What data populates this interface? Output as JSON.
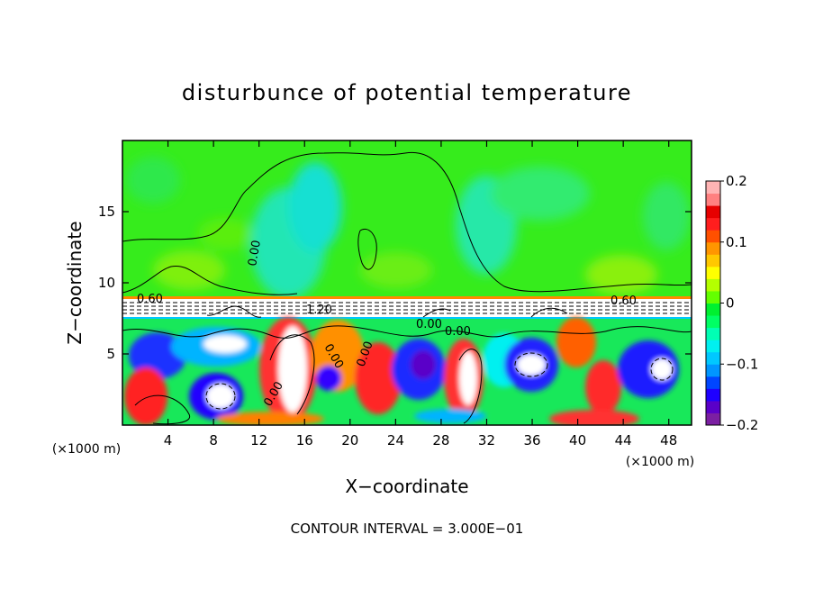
{
  "chart_data": {
    "type": "heatmap",
    "title": "disturbunce of potential temperature",
    "xlabel": "X−coordinate",
    "ylabel": "Z−coordinate",
    "x_unit": "(×1000 m)",
    "y_unit": "(×1000 m)",
    "xlim": [
      0,
      50
    ],
    "ylim": [
      0,
      20
    ],
    "x_ticks": [
      4,
      8,
      12,
      16,
      20,
      24,
      28,
      32,
      36,
      40,
      44,
      48
    ],
    "y_ticks": [
      5,
      10,
      15
    ],
    "colorbar": {
      "range": [
        -0.2,
        0.2
      ],
      "ticks": [
        "0.2",
        "0.1",
        "0",
        "−0.1",
        "−0.2"
      ],
      "tick_values": [
        0.2,
        0.1,
        0,
        -0.1,
        -0.2
      ],
      "colors": [
        "#7b1fa2",
        "#5a00c8",
        "#1e00ff",
        "#0046ff",
        "#0096ff",
        "#00c8ff",
        "#00f0f0",
        "#00ffb4",
        "#00ff64",
        "#00f030",
        "#64ff00",
        "#b4ff00",
        "#ffff00",
        "#ffc800",
        "#ff9600",
        "#ff5000",
        "#ff1e1e",
        "#e60000",
        "#ff8080",
        "#ffb4b4"
      ]
    },
    "contour_interval_label": "CONTOUR INTERVAL = 3.000E−01",
    "contour_labels": [
      "0.60",
      "1.20",
      "0.00",
      "0.00",
      "0.00",
      "0.00",
      "0.00",
      "0.00",
      "0.60"
    ],
    "field_summary": {
      "upper_layer_z": [
        9,
        20
      ],
      "upper_layer_value": "near 0 with weak cyan (negative) plumes above x≈16 and x≈30",
      "inversion_layer_z": [
        7.5,
        9
      ],
      "lower_layer_z": [
        0,
        7.5
      ],
      "lower_layer_value": "turbulent eddies spanning −0.2 to 0.2"
    }
  }
}
